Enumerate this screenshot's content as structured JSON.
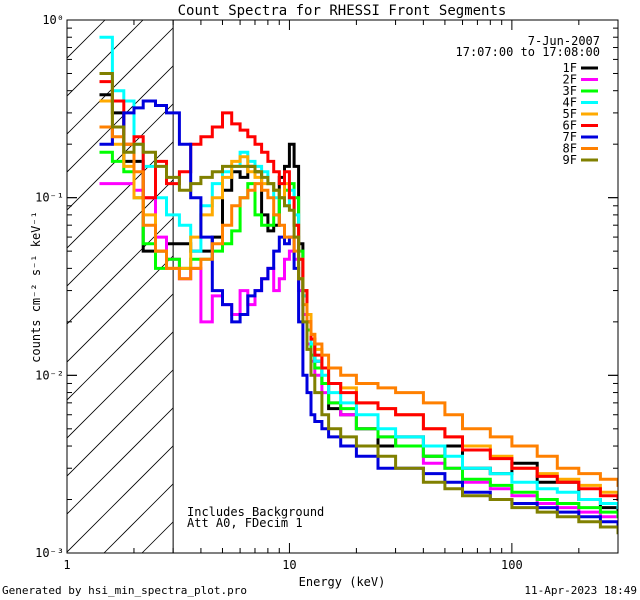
{
  "chart_data": {
    "type": "line",
    "title": "Count Spectra for RHESSI Front Segments",
    "xlabel": "Energy (keV)",
    "ylabel": "counts cm⁻² s⁻¹ keV⁻¹",
    "xscale": "log",
    "yscale": "log",
    "xlim": [
      1,
      300
    ],
    "ylim": [
      0.001,
      1
    ],
    "x_ticks": [
      {
        "value": 1,
        "label": "1"
      },
      {
        "value": 10,
        "label": "10"
      },
      {
        "value": 100,
        "label": "100"
      }
    ],
    "y_ticks": [
      {
        "value": 0.001,
        "label": "10⁻³"
      },
      {
        "value": 0.01,
        "label": "10⁻²"
      },
      {
        "value": 0.1,
        "label": "10⁻¹"
      },
      {
        "value": 1,
        "label": "10⁰"
      }
    ],
    "shaded_region": {
      "x_from": 1,
      "x_to": 3,
      "style": "diagonal hatch"
    },
    "legend_position": "top-right",
    "date": "7-Jun-2007",
    "time_range": "17:07:00 to 17:08:00",
    "annotations": [
      "Includes Background",
      "Att A0, FDecim 1"
    ],
    "series": [
      {
        "name": "1F",
        "color": "#000000",
        "x": [
          1.4,
          1.6,
          1.8,
          2.0,
          2.2,
          2.5,
          2.8,
          3.2,
          3.6,
          4.0,
          4.5,
          5.0,
          5.5,
          6.0,
          6.5,
          7.0,
          7.5,
          8.0,
          8.5,
          9.0,
          9.5,
          10.0,
          10.5,
          11.0,
          11.5,
          12.0,
          12.5,
          13.0,
          14.0,
          15.0,
          17.0,
          20.0,
          25.0,
          30.0,
          40.0,
          50.0,
          60.0,
          80.0,
          100.0,
          130.0,
          160.0,
          200.0,
          250.0,
          300.0
        ],
        "y": [
          0.38,
          0.3,
          0.16,
          0.16,
          0.05,
          0.05,
          0.055,
          0.055,
          0.05,
          0.05,
          0.06,
          0.11,
          0.14,
          0.13,
          0.15,
          0.14,
          0.08,
          0.065,
          0.07,
          0.13,
          0.15,
          0.2,
          0.15,
          0.055,
          0.03,
          0.02,
          0.015,
          0.012,
          0.009,
          0.0065,
          0.006,
          0.005,
          0.004,
          0.0045,
          0.0035,
          0.004,
          0.003,
          0.0028,
          0.0032,
          0.0025,
          0.0025,
          0.002,
          0.0018,
          0.0017
        ]
      },
      {
        "name": "2F",
        "color": "#ff00ff",
        "x": [
          1.4,
          1.6,
          1.8,
          2.0,
          2.2,
          2.5,
          2.8,
          3.2,
          3.6,
          4.0,
          4.5,
          5.0,
          5.5,
          6.0,
          6.5,
          7.0,
          7.5,
          8.0,
          8.5,
          9.0,
          9.5,
          10.0,
          10.5,
          11.0,
          11.5,
          12.0,
          12.5,
          13.0,
          14.0,
          15.0,
          17.0,
          20.0,
          25.0,
          30.0,
          40.0,
          50.0,
          60.0,
          80.0,
          100.0,
          130.0,
          160.0,
          200.0,
          250.0,
          300.0
        ],
        "y": [
          0.12,
          0.12,
          0.12,
          0.11,
          0.1,
          0.06,
          0.045,
          0.035,
          0.04,
          0.02,
          0.028,
          0.025,
          0.022,
          0.03,
          0.025,
          0.03,
          0.035,
          0.04,
          0.03,
          0.035,
          0.045,
          0.05,
          0.045,
          0.03,
          0.022,
          0.015,
          0.012,
          0.01,
          0.008,
          0.007,
          0.006,
          0.005,
          0.0045,
          0.004,
          0.0032,
          0.003,
          0.0025,
          0.0023,
          0.0021,
          0.0019,
          0.0018,
          0.0017,
          0.0016,
          0.0016
        ]
      },
      {
        "name": "3F",
        "color": "#00ff00",
        "x": [
          1.4,
          1.6,
          1.8,
          2.0,
          2.2,
          2.5,
          2.8,
          3.2,
          3.6,
          4.0,
          4.5,
          5.0,
          5.5,
          6.0,
          6.5,
          7.0,
          7.5,
          8.0,
          8.5,
          9.0,
          9.5,
          10.0,
          10.5,
          11.0,
          11.5,
          12.0,
          12.5,
          13.0,
          14.0,
          15.0,
          17.0,
          20.0,
          25.0,
          30.0,
          40.0,
          50.0,
          60.0,
          80.0,
          100.0,
          130.0,
          160.0,
          200.0,
          250.0,
          300.0
        ],
        "y": [
          0.18,
          0.16,
          0.14,
          0.1,
          0.055,
          0.04,
          0.045,
          0.04,
          0.045,
          0.045,
          0.05,
          0.055,
          0.065,
          0.1,
          0.12,
          0.08,
          0.07,
          0.07,
          0.08,
          0.1,
          0.11,
          0.12,
          0.1,
          0.05,
          0.028,
          0.018,
          0.013,
          0.011,
          0.009,
          0.007,
          0.0065,
          0.005,
          0.0045,
          0.004,
          0.0035,
          0.003,
          0.0026,
          0.0024,
          0.0022,
          0.002,
          0.0019,
          0.0018,
          0.0017,
          0.0016
        ]
      },
      {
        "name": "4F",
        "color": "#00ffff",
        "x": [
          1.4,
          1.6,
          1.8,
          2.0,
          2.2,
          2.5,
          2.8,
          3.2,
          3.6,
          4.0,
          4.5,
          5.0,
          5.5,
          6.0,
          6.5,
          7.0,
          7.5,
          8.0,
          8.5,
          9.0,
          9.5,
          10.0,
          10.5,
          11.0,
          11.5,
          12.0,
          12.5,
          13.0,
          14.0,
          15.0,
          17.0,
          20.0,
          25.0,
          30.0,
          40.0,
          50.0,
          60.0,
          80.0,
          100.0,
          130.0,
          160.0,
          200.0,
          250.0,
          300.0
        ],
        "y": [
          0.8,
          0.4,
          0.35,
          0.2,
          0.15,
          0.1,
          0.08,
          0.07,
          0.05,
          0.09,
          0.12,
          0.14,
          0.15,
          0.18,
          0.16,
          0.15,
          0.14,
          0.12,
          0.1,
          0.1,
          0.09,
          0.11,
          0.08,
          0.045,
          0.028,
          0.02,
          0.015,
          0.012,
          0.01,
          0.008,
          0.007,
          0.006,
          0.005,
          0.0045,
          0.004,
          0.0035,
          0.003,
          0.0028,
          0.0025,
          0.0023,
          0.0022,
          0.002,
          0.0019,
          0.0018
        ]
      },
      {
        "name": "5F",
        "color": "#ffaa00",
        "x": [
          1.4,
          1.6,
          1.8,
          2.0,
          2.2,
          2.5,
          2.8,
          3.2,
          3.6,
          4.0,
          4.5,
          5.0,
          5.5,
          6.0,
          6.5,
          7.0,
          7.5,
          8.0,
          8.5,
          9.0,
          9.5,
          10.0,
          10.5,
          11.0,
          11.5,
          12.0,
          12.5,
          13.0,
          14.0,
          15.0,
          17.0,
          20.0,
          25.0,
          30.0,
          40.0,
          50.0,
          60.0,
          80.0,
          100.0,
          130.0,
          160.0,
          200.0,
          250.0,
          300.0
        ],
        "y": [
          0.35,
          0.2,
          0.15,
          0.1,
          0.08,
          0.05,
          0.04,
          0.04,
          0.06,
          0.08,
          0.1,
          0.13,
          0.16,
          0.17,
          0.14,
          0.13,
          0.12,
          0.12,
          0.11,
          0.1,
          0.12,
          0.1,
          0.07,
          0.045,
          0.03,
          0.022,
          0.017,
          0.014,
          0.011,
          0.009,
          0.0085,
          0.007,
          0.0065,
          0.006,
          0.005,
          0.0045,
          0.004,
          0.0035,
          0.003,
          0.0028,
          0.0026,
          0.0024,
          0.0022,
          0.0021
        ]
      },
      {
        "name": "6F",
        "color": "#ff0000",
        "x": [
          1.4,
          1.6,
          1.8,
          2.0,
          2.2,
          2.5,
          2.8,
          3.2,
          3.6,
          4.0,
          4.5,
          5.0,
          5.5,
          6.0,
          6.5,
          7.0,
          7.5,
          8.0,
          8.5,
          9.0,
          9.5,
          10.0,
          10.5,
          11.0,
          11.5,
          12.0,
          12.5,
          13.0,
          14.0,
          15.0,
          17.0,
          20.0,
          25.0,
          30.0,
          40.0,
          50.0,
          60.0,
          80.0,
          100.0,
          130.0,
          160.0,
          200.0,
          250.0,
          300.0
        ],
        "y": [
          0.45,
          0.35,
          0.2,
          0.22,
          0.1,
          0.16,
          0.12,
          0.14,
          0.2,
          0.22,
          0.25,
          0.3,
          0.26,
          0.24,
          0.22,
          0.2,
          0.18,
          0.16,
          0.14,
          0.12,
          0.14,
          0.1,
          0.07,
          0.045,
          0.03,
          0.02,
          0.016,
          0.013,
          0.011,
          0.009,
          0.008,
          0.007,
          0.0065,
          0.006,
          0.005,
          0.0045,
          0.0038,
          0.0034,
          0.003,
          0.0027,
          0.0025,
          0.0023,
          0.0021,
          0.002
        ]
      },
      {
        "name": "7F",
        "color": "#0000dd",
        "x": [
          1.4,
          1.6,
          1.8,
          2.0,
          2.2,
          2.5,
          2.8,
          3.2,
          3.6,
          4.0,
          4.5,
          5.0,
          5.5,
          6.0,
          6.5,
          7.0,
          7.5,
          8.0,
          8.5,
          9.0,
          9.5,
          10.0,
          10.5,
          11.0,
          11.5,
          12.0,
          12.5,
          13.0,
          14.0,
          15.0,
          17.0,
          20.0,
          25.0,
          30.0,
          40.0,
          50.0,
          60.0,
          80.0,
          100.0,
          130.0,
          160.0,
          200.0,
          250.0,
          300.0
        ],
        "y": [
          0.2,
          0.25,
          0.3,
          0.32,
          0.35,
          0.33,
          0.3,
          0.2,
          0.1,
          0.06,
          0.03,
          0.025,
          0.02,
          0.022,
          0.028,
          0.03,
          0.035,
          0.04,
          0.05,
          0.06,
          0.055,
          0.06,
          0.04,
          0.02,
          0.01,
          0.008,
          0.006,
          0.0055,
          0.005,
          0.0045,
          0.004,
          0.0035,
          0.003,
          0.003,
          0.0028,
          0.0025,
          0.0022,
          0.002,
          0.0019,
          0.0018,
          0.0017,
          0.0016,
          0.0015,
          0.0014
        ]
      },
      {
        "name": "8F",
        "color": "#ff8000",
        "x": [
          1.4,
          1.6,
          1.8,
          2.0,
          2.2,
          2.5,
          2.8,
          3.2,
          3.6,
          4.0,
          4.5,
          5.0,
          5.5,
          6.0,
          6.5,
          7.0,
          7.5,
          8.0,
          8.5,
          9.0,
          9.5,
          10.0,
          10.5,
          11.0,
          11.5,
          12.0,
          12.5,
          13.0,
          14.0,
          15.0,
          17.0,
          20.0,
          25.0,
          30.0,
          40.0,
          50.0,
          60.0,
          80.0,
          100.0,
          130.0,
          160.0,
          200.0,
          250.0,
          300.0
        ],
        "y": [
          0.25,
          0.22,
          0.2,
          0.14,
          0.07,
          0.05,
          0.04,
          0.035,
          0.04,
          0.045,
          0.055,
          0.07,
          0.09,
          0.1,
          0.11,
          0.12,
          0.11,
          0.1,
          0.08,
          0.07,
          0.06,
          0.06,
          0.05,
          0.035,
          0.025,
          0.02,
          0.017,
          0.015,
          0.013,
          0.011,
          0.01,
          0.009,
          0.0085,
          0.008,
          0.007,
          0.006,
          0.005,
          0.0045,
          0.004,
          0.0035,
          0.003,
          0.0028,
          0.0026,
          0.0024
        ]
      },
      {
        "name": "9F",
        "color": "#808000",
        "x": [
          1.4,
          1.6,
          1.8,
          2.0,
          2.2,
          2.5,
          2.8,
          3.2,
          3.6,
          4.0,
          4.5,
          5.0,
          5.5,
          6.0,
          6.5,
          7.0,
          7.5,
          8.0,
          8.5,
          9.0,
          9.5,
          10.0,
          10.5,
          11.0,
          11.5,
          12.0,
          12.5,
          13.0,
          14.0,
          15.0,
          17.0,
          20.0,
          25.0,
          30.0,
          40.0,
          50.0,
          60.0,
          80.0,
          100.0,
          130.0,
          160.0,
          200.0,
          250.0,
          300.0
        ],
        "y": [
          0.5,
          0.25,
          0.18,
          0.2,
          0.18,
          0.15,
          0.13,
          0.11,
          0.12,
          0.13,
          0.14,
          0.15,
          0.15,
          0.15,
          0.15,
          0.14,
          0.13,
          0.12,
          0.11,
          0.1,
          0.09,
          0.085,
          0.06,
          0.035,
          0.02,
          0.014,
          0.01,
          0.008,
          0.006,
          0.005,
          0.0045,
          0.004,
          0.0035,
          0.003,
          0.0025,
          0.0023,
          0.0021,
          0.002,
          0.0018,
          0.0017,
          0.0016,
          0.0015,
          0.0014,
          0.0013
        ]
      }
    ]
  },
  "footer": {
    "generated_by": "Generated by hsi_min_spectra_plot.pro",
    "timestamp": "11-Apr-2023 18:49"
  }
}
